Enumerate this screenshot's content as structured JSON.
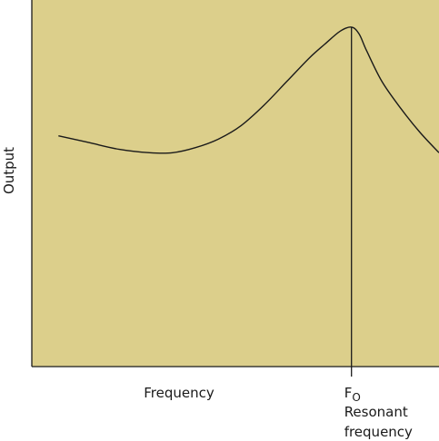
{
  "chart_data": {
    "type": "line",
    "title": "",
    "xlabel": "Frequency",
    "ylabel": "Output",
    "grid": false,
    "legend": "none",
    "colors": {
      "plot_background": "#dccf8b",
      "curve": "#1a1a1a",
      "axes": "#1a1a1a"
    },
    "series": [
      {
        "x": [
          0.0,
          0.08,
          0.16,
          0.24,
          0.3,
          0.36,
          0.42,
          0.48,
          0.54,
          0.6,
          0.66,
          0.7,
          0.74,
          0.77,
          0.79,
          0.81,
          0.85,
          0.9,
          0.95,
          1.0
        ],
        "y": [
          0.68,
          0.66,
          0.64,
          0.63,
          0.63,
          0.645,
          0.67,
          0.71,
          0.77,
          0.84,
          0.91,
          0.95,
          0.988,
          1.0,
          0.98,
          0.93,
          0.84,
          0.76,
          0.69,
          0.63
        ]
      }
    ],
    "xlim": [
      -0.07,
      1.0
    ],
    "ylim": [
      0.0,
      1.08
    ],
    "marker": {
      "x": 0.77,
      "symbol": "F",
      "subscript": "O",
      "label_line1": "Resonant",
      "label_line2": "frequency"
    }
  }
}
